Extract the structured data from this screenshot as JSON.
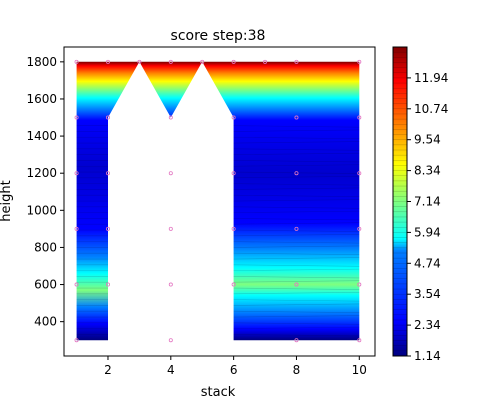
{
  "chart_data": {
    "type": "heatmap",
    "title": "score step:38",
    "xlabel": "stack",
    "ylabel": "height",
    "xlim": [
      0.6,
      10.5
    ],
    "ylim": [
      215,
      1880
    ],
    "x_ticks": [
      "2",
      "4",
      "6",
      "8",
      "10"
    ],
    "y_ticks": [
      "400",
      "600",
      "800",
      "1000",
      "1200",
      "1400",
      "1600",
      "1800"
    ],
    "colorbar": {
      "min": 1.14,
      "max": 13.14,
      "ticks": [
        "1.14",
        "2.34",
        "3.54",
        "4.74",
        "5.94",
        "7.14",
        "8.34",
        "9.54",
        "10.74",
        "11.94"
      ]
    },
    "filled_region": [
      [
        1,
        300
      ],
      [
        2,
        300
      ],
      [
        2,
        1500
      ],
      [
        3,
        1800
      ],
      [
        4,
        1500
      ],
      [
        5,
        1800
      ],
      [
        6,
        1500
      ],
      [
        6,
        300
      ],
      [
        10,
        300
      ],
      [
        10,
        1800
      ],
      [
        1,
        1800
      ]
    ],
    "points": [
      [
        1,
        300
      ],
      [
        4,
        300
      ],
      [
        8,
        300
      ],
      [
        10,
        300
      ],
      [
        1,
        600
      ],
      [
        2,
        600
      ],
      [
        4,
        600
      ],
      [
        6,
        600
      ],
      [
        8,
        600
      ],
      [
        10,
        600
      ],
      [
        1,
        900
      ],
      [
        2,
        900
      ],
      [
        4,
        900
      ],
      [
        6,
        900
      ],
      [
        8,
        900
      ],
      [
        10,
        900
      ],
      [
        1,
        1200
      ],
      [
        2,
        1200
      ],
      [
        4,
        1200
      ],
      [
        6,
        1200
      ],
      [
        8,
        1200
      ],
      [
        10,
        1200
      ],
      [
        1,
        1500
      ],
      [
        2,
        1500
      ],
      [
        4,
        1500
      ],
      [
        6,
        1500
      ],
      [
        8,
        1500
      ],
      [
        10,
        1500
      ],
      [
        1,
        1800
      ],
      [
        2,
        1800
      ],
      [
        3,
        1800
      ],
      [
        4,
        1800
      ],
      [
        5,
        1800
      ],
      [
        6,
        1800
      ],
      [
        7,
        1800
      ],
      [
        8,
        1800
      ],
      [
        10,
        1800
      ]
    ],
    "colors": {
      "jet": [
        "#00007f",
        "#0000ff",
        "#007fff",
        "#00ffff",
        "#7fff7f",
        "#ffff00",
        "#ff7f00",
        "#ff0000",
        "#7f0000"
      ],
      "marker": "#e377c2"
    }
  }
}
